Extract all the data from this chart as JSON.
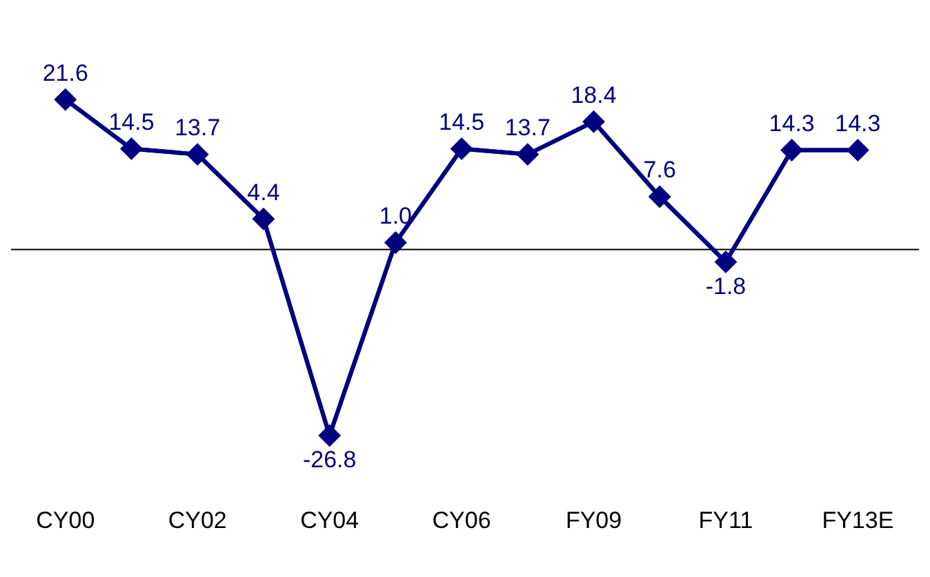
{
  "chart_data": {
    "type": "line",
    "categories": [
      "CY00",
      null,
      "CY02",
      null,
      "CY04",
      null,
      "CY06",
      null,
      "FY09",
      null,
      "FY11",
      null,
      "FY13E"
    ],
    "series": [
      {
        "color": "#000080",
        "values": [
          21.6,
          14.5,
          13.7,
          4.4,
          -26.8,
          1.0,
          14.5,
          13.7,
          18.4,
          7.6,
          -1.8,
          14.3,
          14.3
        ],
        "value_labels": [
          "21.6",
          "14.5",
          "13.7",
          "4.4",
          "-26.8",
          "1.0",
          "14.5",
          "13.7",
          "18.4",
          "7.6",
          "-1.8",
          "14.3",
          "14.3"
        ]
      }
    ],
    "marker": "diamond",
    "line_style": "solid",
    "grid": false,
    "legend": false,
    "tick_labels": "x",
    "ref_lines": [
      {
        "axis": "y",
        "value": 0,
        "color": "#000000"
      }
    ]
  }
}
